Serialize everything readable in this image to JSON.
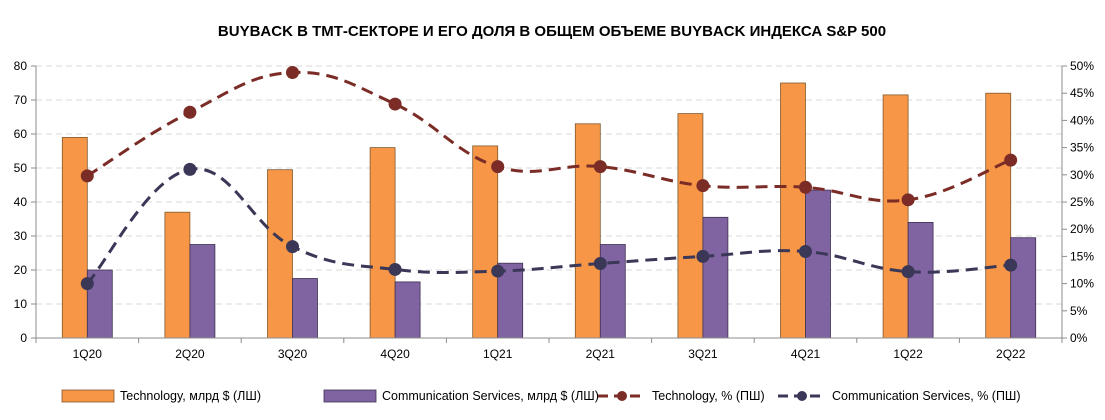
{
  "chart_data": {
    "type": "bar+line",
    "title": "BUYBACK В ТМТ-СЕКТОРЕ И ЕГО ДОЛЯ В ОБЩЕМ ОБЪЕМЕ BUYBACK ИНДЕКСА S&P 500",
    "categories": [
      "1Q20",
      "2Q20",
      "3Q20",
      "4Q20",
      "1Q21",
      "2Q21",
      "3Q21",
      "4Q21",
      "1Q22",
      "2Q22"
    ],
    "left_axis": {
      "min": 0,
      "max": 80,
      "step": 10,
      "ticks": [
        "0",
        "10",
        "20",
        "30",
        "40",
        "50",
        "60",
        "70",
        "80"
      ]
    },
    "right_axis": {
      "min": 0,
      "max": 50,
      "step": 5,
      "ticks": [
        "0%",
        "5%",
        "10%",
        "15%",
        "20%",
        "25%",
        "30%",
        "35%",
        "40%",
        "45%",
        "50%"
      ]
    },
    "series": [
      {
        "name": "Technology, млрд $ (ЛШ)",
        "kind": "bar",
        "axis": "left",
        "color": "#F79646",
        "stroke": "#7f5a2e",
        "values": [
          59,
          37,
          49.5,
          56,
          56.5,
          63,
          66,
          75,
          71.5,
          72
        ]
      },
      {
        "name": "Communication Services, млрд $ (ЛШ)",
        "kind": "bar",
        "axis": "left",
        "color": "#8064A2",
        "stroke": "#3f3152",
        "values": [
          20,
          27.5,
          17.5,
          16.5,
          22,
          27.5,
          35.5,
          43.5,
          34,
          29.5
        ]
      },
      {
        "name": "Technology, % (ПШ)",
        "kind": "line",
        "axis": "right",
        "color": "#7B2C26",
        "values": [
          29.8,
          41.5,
          48.8,
          43,
          31.5,
          31.5,
          28,
          27.7,
          25.4,
          32.7
        ]
      },
      {
        "name": "Communication Services, % (ПШ)",
        "kind": "line",
        "axis": "right",
        "color": "#3A3757",
        "values": [
          10,
          31,
          16.8,
          12.6,
          12.3,
          13.7,
          15,
          15.9,
          12.2,
          13.4
        ]
      }
    ],
    "grid": true,
    "legend_position": "bottom"
  }
}
